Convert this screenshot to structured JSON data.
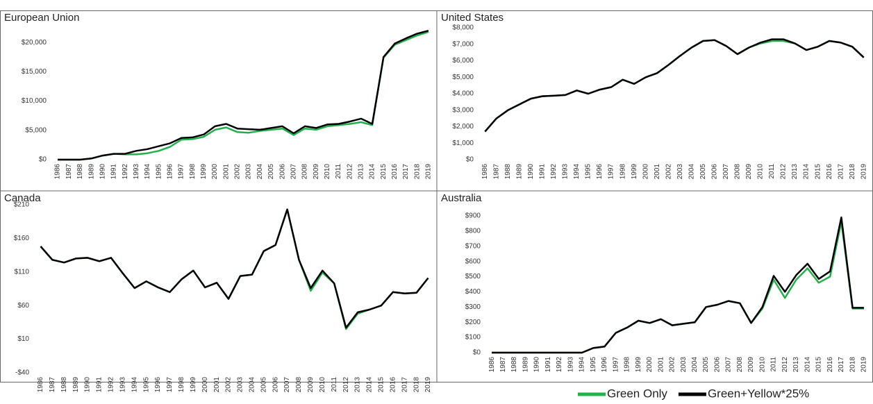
{
  "chart_data": [
    {
      "type": "line",
      "title": "European Union",
      "grid": false,
      "categories": [
        "1986",
        "1987",
        "1988",
        "1989",
        "1990",
        "1991",
        "1992",
        "1993",
        "1994",
        "1995",
        "1996",
        "1997",
        "1998",
        "1999",
        "2000",
        "2001",
        "2002",
        "2003",
        "2004",
        "2005",
        "2006",
        "2007",
        "2008",
        "2009",
        "2010",
        "2011",
        "2012",
        "2013",
        "2014",
        "2015",
        "2016",
        "2017",
        "2018",
        "2019"
      ],
      "ylim": [
        0,
        22500
      ],
      "yticks": [
        {
          "value": 0,
          "label": "$0"
        },
        {
          "value": 5000,
          "label": "$5,000"
        },
        {
          "value": 10000,
          "label": "$10,000"
        },
        {
          "value": 15000,
          "label": "$15,000"
        },
        {
          "value": 20000,
          "label": "$20,000"
        }
      ],
      "series": [
        {
          "name": "Green Only",
          "color": "#22b04b",
          "values": [
            0,
            0,
            0,
            200,
            700,
            1000,
            900,
            900,
            1100,
            1500,
            2200,
            3400,
            3500,
            3900,
            5100,
            5500,
            4700,
            4600,
            4900,
            5100,
            5300,
            4200,
            5300,
            5100,
            5700,
            5900,
            6100,
            6400,
            5900,
            17400,
            19600,
            20400,
            21200,
            21800
          ]
        },
        {
          "name": "Green+Yellow*25%",
          "color": "#000000",
          "values": [
            0,
            0,
            0,
            200,
            700,
            1000,
            1000,
            1500,
            1800,
            2300,
            2800,
            3700,
            3800,
            4300,
            5700,
            6100,
            5300,
            5200,
            5100,
            5400,
            5700,
            4500,
            5700,
            5400,
            6000,
            6100,
            6500,
            7000,
            6100,
            17500,
            19800,
            20700,
            21500,
            22000
          ]
        }
      ]
    },
    {
      "type": "line",
      "title": "United States",
      "grid": false,
      "categories": [
        "1986",
        "1987",
        "1988",
        "1989",
        "1990",
        "1991",
        "1992",
        "1993",
        "1994",
        "1995",
        "1996",
        "1997",
        "1998",
        "1999",
        "2000",
        "2001",
        "2002",
        "2003",
        "2004",
        "2005",
        "2006",
        "2007",
        "2008",
        "2009",
        "2010",
        "2011",
        "2012",
        "2013",
        "2014",
        "2015",
        "2016",
        "2017",
        "2018",
        "2019"
      ],
      "ylim": [
        0,
        8000
      ],
      "yticks": [
        {
          "value": 0,
          "label": "$0"
        },
        {
          "value": 1000,
          "label": "$1,000"
        },
        {
          "value": 2000,
          "label": "$2,000"
        },
        {
          "value": 3000,
          "label": "$3,000"
        },
        {
          "value": 4000,
          "label": "$4,000"
        },
        {
          "value": 5000,
          "label": "$5,000"
        },
        {
          "value": 6000,
          "label": "$6,000"
        },
        {
          "value": 7000,
          "label": "$7,000"
        },
        {
          "value": 8000,
          "label": "$8,000"
        }
      ],
      "series": [
        {
          "name": "Green Only",
          "color": "#22b04b",
          "values": [
            1700,
            2500,
            3000,
            3350,
            3700,
            3850,
            3880,
            3920,
            4200,
            4000,
            4250,
            4400,
            4850,
            4600,
            5000,
            5250,
            5750,
            6300,
            6800,
            7200,
            7250,
            6900,
            6400,
            6800,
            7050,
            7200,
            7200,
            7050,
            6650,
            6850,
            7200,
            7100,
            6850,
            6200
          ]
        },
        {
          "name": "Green+Yellow*25%",
          "color": "#000000",
          "values": [
            1700,
            2500,
            3000,
            3350,
            3700,
            3850,
            3880,
            3920,
            4200,
            4000,
            4250,
            4400,
            4850,
            4600,
            5000,
            5250,
            5750,
            6300,
            6800,
            7200,
            7250,
            6900,
            6400,
            6800,
            7100,
            7300,
            7300,
            7050,
            6650,
            6850,
            7200,
            7100,
            6850,
            6200
          ]
        }
      ]
    },
    {
      "type": "line",
      "title": "Canada",
      "grid": false,
      "categories": [
        "1986",
        "1987",
        "1988",
        "1989",
        "1990",
        "1991",
        "1992",
        "1993",
        "1994",
        "1995",
        "1996",
        "1997",
        "1998",
        "1999",
        "2000",
        "2001",
        "2002",
        "2003",
        "2004",
        "2005",
        "2006",
        "2007",
        "2008",
        "2009",
        "2010",
        "2011",
        "2012",
        "2013",
        "2014",
        "2015",
        "2016",
        "2017",
        "2018",
        "2019"
      ],
      "ylim": [
        -40,
        212
      ],
      "yticks": [
        {
          "value": -40,
          "label": "-$40"
        },
        {
          "value": 10,
          "label": "$10"
        },
        {
          "value": 60,
          "label": "$60"
        },
        {
          "value": 110,
          "label": "$110"
        },
        {
          "value": 160,
          "label": "$160"
        },
        {
          "value": 210,
          "label": "$210"
        }
      ],
      "series": [
        {
          "name": "Green Only",
          "color": "#22b04b",
          "values": [
            148,
            128,
            124,
            130,
            131,
            126,
            131,
            108,
            86,
            96,
            87,
            80,
            99,
            112,
            87,
            94,
            70,
            104,
            106,
            141,
            150,
            203,
            128,
            82,
            109,
            93,
            25,
            48,
            54,
            60,
            80,
            78,
            79,
            101
          ]
        },
        {
          "name": "Green+Yellow*25%",
          "color": "#000000",
          "values": [
            148,
            128,
            124,
            130,
            131,
            126,
            131,
            108,
            86,
            96,
            87,
            80,
            99,
            112,
            87,
            94,
            70,
            104,
            106,
            141,
            150,
            203,
            128,
            86,
            112,
            93,
            27,
            50,
            54,
            60,
            80,
            78,
            79,
            101
          ]
        }
      ]
    },
    {
      "type": "line",
      "title": "Australia",
      "grid": false,
      "categories": [
        "1986",
        "1987",
        "1988",
        "1989",
        "1990",
        "1991",
        "1992",
        "1993",
        "1994",
        "1995",
        "1996",
        "1997",
        "1998",
        "1999",
        "2000",
        "2001",
        "2002",
        "2003",
        "2004",
        "2005",
        "2006",
        "2007",
        "2008",
        "2009",
        "2010",
        "2011",
        "2012",
        "2013",
        "2014",
        "2015",
        "2016",
        "2017",
        "2018",
        "2019"
      ],
      "ylim": [
        0,
        950
      ],
      "yticks": [
        {
          "value": 0,
          "label": "$0"
        },
        {
          "value": 100,
          "label": "$100"
        },
        {
          "value": 200,
          "label": "$200"
        },
        {
          "value": 300,
          "label": "$300"
        },
        {
          "value": 400,
          "label": "$400"
        },
        {
          "value": 500,
          "label": "$500"
        },
        {
          "value": 600,
          "label": "$600"
        },
        {
          "value": 700,
          "label": "$700"
        },
        {
          "value": 800,
          "label": "$800"
        },
        {
          "value": 900,
          "label": "$900"
        }
      ],
      "series": [
        {
          "name": "Green Only",
          "color": "#22b04b",
          "values": [
            0,
            0,
            0,
            0,
            0,
            0,
            0,
            0,
            0,
            30,
            40,
            130,
            165,
            210,
            195,
            220,
            180,
            190,
            200,
            300,
            315,
            340,
            325,
            195,
            290,
            480,
            360,
            480,
            555,
            460,
            500,
            860,
            290,
            290
          ]
        },
        {
          "name": "Green+Yellow*25%",
          "color": "#000000",
          "values": [
            0,
            0,
            0,
            0,
            0,
            0,
            0,
            0,
            0,
            30,
            40,
            130,
            165,
            210,
            195,
            220,
            180,
            190,
            200,
            300,
            315,
            340,
            325,
            195,
            300,
            505,
            400,
            510,
            585,
            485,
            535,
            890,
            295,
            295
          ]
        }
      ]
    }
  ],
  "legend": {
    "position": "bottom-right"
  }
}
